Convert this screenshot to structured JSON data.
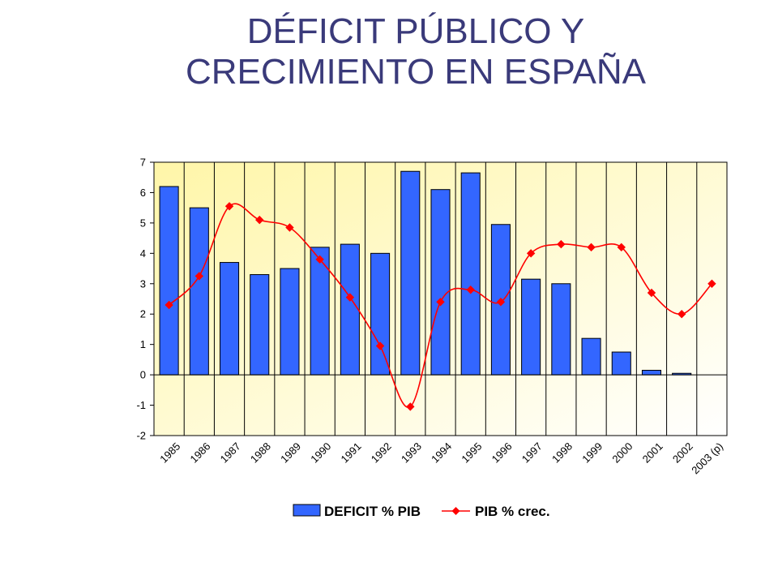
{
  "title_lines": [
    "DÉFICIT PÚBLICO Y",
    "CRECIMIENTO EN ESPAÑA"
  ],
  "chart_data": {
    "type": "bar",
    "categories": [
      "1985",
      "1986",
      "1987",
      "1988",
      "1989",
      "1990",
      "1991",
      "1992",
      "1993",
      "1994",
      "1995",
      "1996",
      "1997",
      "1998",
      "1999",
      "2000",
      "2001",
      "2002",
      "2003 (p)"
    ],
    "series": [
      {
        "name": "DEFICIT % PIB",
        "type": "bar",
        "color": "#3366ff",
        "values": [
          6.2,
          5.5,
          3.7,
          3.3,
          3.5,
          4.2,
          4.3,
          4.0,
          6.7,
          6.1,
          6.65,
          4.95,
          3.15,
          3.0,
          1.2,
          0.75,
          0.15,
          0.05,
          null
        ]
      },
      {
        "name": "PIB % crec.",
        "type": "line",
        "color": "#ff0000",
        "values": [
          2.3,
          3.25,
          5.55,
          5.1,
          4.85,
          3.8,
          2.55,
          0.95,
          -1.05,
          2.4,
          2.8,
          2.4,
          4.0,
          4.3,
          4.2,
          4.2,
          2.7,
          2.0,
          3.0
        ]
      }
    ],
    "yticks": [
      "-2",
      "-1",
      "0",
      "1",
      "2",
      "3",
      "4",
      "5",
      "6",
      "7"
    ],
    "ylim": [
      -2,
      7
    ],
    "xlabel": "",
    "ylabel": "",
    "grid": "vertical",
    "legend": "bottom",
    "background_gradient": [
      "#fff9c0",
      "#ffffff"
    ]
  }
}
